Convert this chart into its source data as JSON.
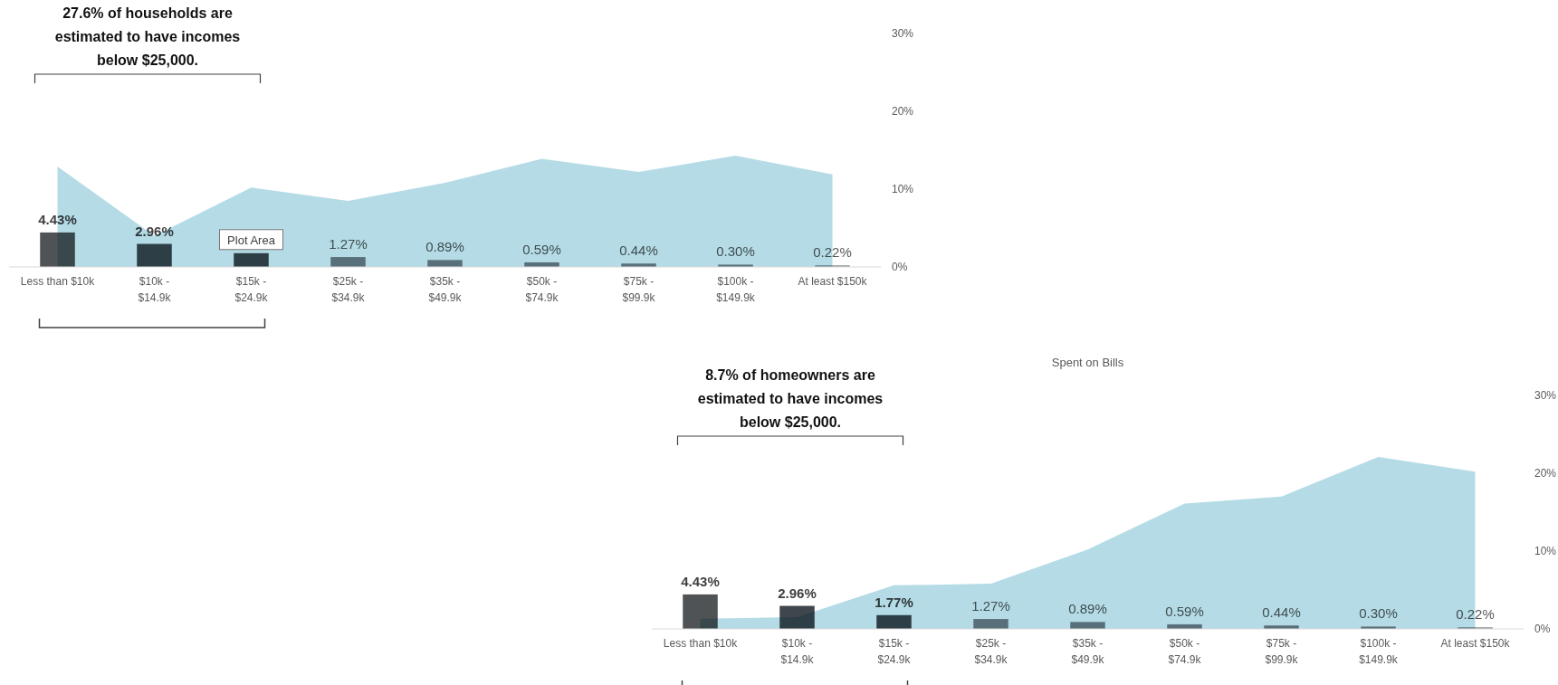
{
  "chart_data": [
    {
      "type": "bar",
      "categories": [
        "Less than $10k",
        "$10k - $14.9k",
        "$15k - $24.9k",
        "$25k - $34.9k",
        "$35k - $49.9k",
        "$50k - $74.9k",
        "$75k - $99.9k",
        "$100k - $149.9k",
        "At least $150k"
      ],
      "series": [
        {
          "type": "area",
          "color": "#b5dce6",
          "values": [
            12.9,
            4.0,
            10.2,
            8.5,
            10.8,
            13.9,
            12.2,
            14.3,
            11.9
          ]
        },
        {
          "colors": [
            "#505355",
            "#3f474d",
            "#3f474d",
            "#7d8287",
            "#7d8287",
            "#7d8287",
            "#7d8287",
            "#7d8287",
            "#9a9ea2"
          ],
          "values": [
            4.43,
            2.96,
            1.77,
            1.27,
            0.89,
            0.59,
            0.44,
            0.3,
            0.22
          ],
          "value_labels": [
            "4.43%",
            "2.96%",
            null,
            "1.27%",
            "0.89%",
            "0.59%",
            "0.44%",
            "0.30%",
            "0.22%"
          ]
        }
      ],
      "ylim": [
        0,
        30
      ],
      "yticks": [
        {
          "value": 0,
          "label": "0%"
        },
        {
          "value": 10,
          "label": "10%"
        },
        {
          "value": 20,
          "label": "20%"
        },
        {
          "value": 30,
          "label": "30%"
        }
      ],
      "annotations": [
        "27.6% of households are estimated to have incomes below $25,000.",
        {
          "text": "Plot Area",
          "x": "$15k - $24.9k",
          "y": 1.77
        }
      ]
    },
    {
      "type": "bar",
      "title": "Spent on Bills",
      "categories": [
        "Less than $10k",
        "$10k - $14.9k",
        "$15k - $24.9k",
        "$25k - $34.9k",
        "$35k - $49.9k",
        "$50k - $74.9k",
        "$75k - $99.9k",
        "$100k - $149.9k",
        "At least $150k"
      ],
      "series": [
        {
          "type": "area",
          "color": "#b5dce6",
          "values": [
            1.3,
            1.5,
            5.6,
            5.8,
            10.2,
            16.1,
            17.0,
            22.1,
            20.2
          ]
        },
        {
          "colors": [
            "#505355",
            "#3f474d",
            "#3f474d",
            "#7d8287",
            "#7d8287",
            "#7d8287",
            "#7d8287",
            "#7d8287",
            "#9a9ea2"
          ],
          "values": [
            4.43,
            2.96,
            1.77,
            1.27,
            0.89,
            0.59,
            0.44,
            0.3,
            0.22
          ],
          "value_labels": [
            "4.43%",
            "2.96%",
            "1.77%",
            "1.27%",
            "0.89%",
            "0.59%",
            "0.44%",
            "0.30%",
            "0.22%"
          ]
        }
      ],
      "ylim": [
        0,
        30
      ],
      "yticks": [
        {
          "value": 0,
          "label": "0%"
        },
        {
          "value": 10,
          "label": "10%"
        },
        {
          "value": 20,
          "label": "20%"
        },
        {
          "value": 30,
          "label": "30%"
        }
      ],
      "annotations": [
        "8.7% of homeowners are estimated to have incomes below $25,000."
      ]
    }
  ]
}
